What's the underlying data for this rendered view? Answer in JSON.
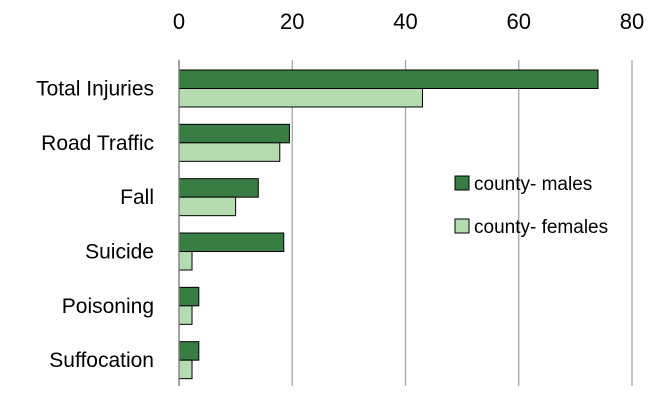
{
  "chart_data": {
    "type": "bar",
    "orientation": "horizontal",
    "title": "",
    "xlabel": "",
    "ylabel": "",
    "xlim": [
      0,
      80
    ],
    "x_ticks": [
      0,
      20,
      40,
      60,
      80
    ],
    "x_axis_position": "top",
    "grid": "vertical",
    "categories": [
      "Total Injuries",
      "Road Traffic",
      "Fall",
      "Suicide",
      "Poisoning",
      "Suffocation"
    ],
    "series": [
      {
        "name": "county- males",
        "color": "#3a7d44",
        "values": [
          74,
          19.5,
          14,
          18.5,
          3.5,
          3.5
        ]
      },
      {
        "name": "county- females",
        "color": "#b5dcb0",
        "values": [
          43,
          17.8,
          10,
          2.3,
          2.3,
          2.3
        ]
      }
    ],
    "legend_position": "right"
  }
}
